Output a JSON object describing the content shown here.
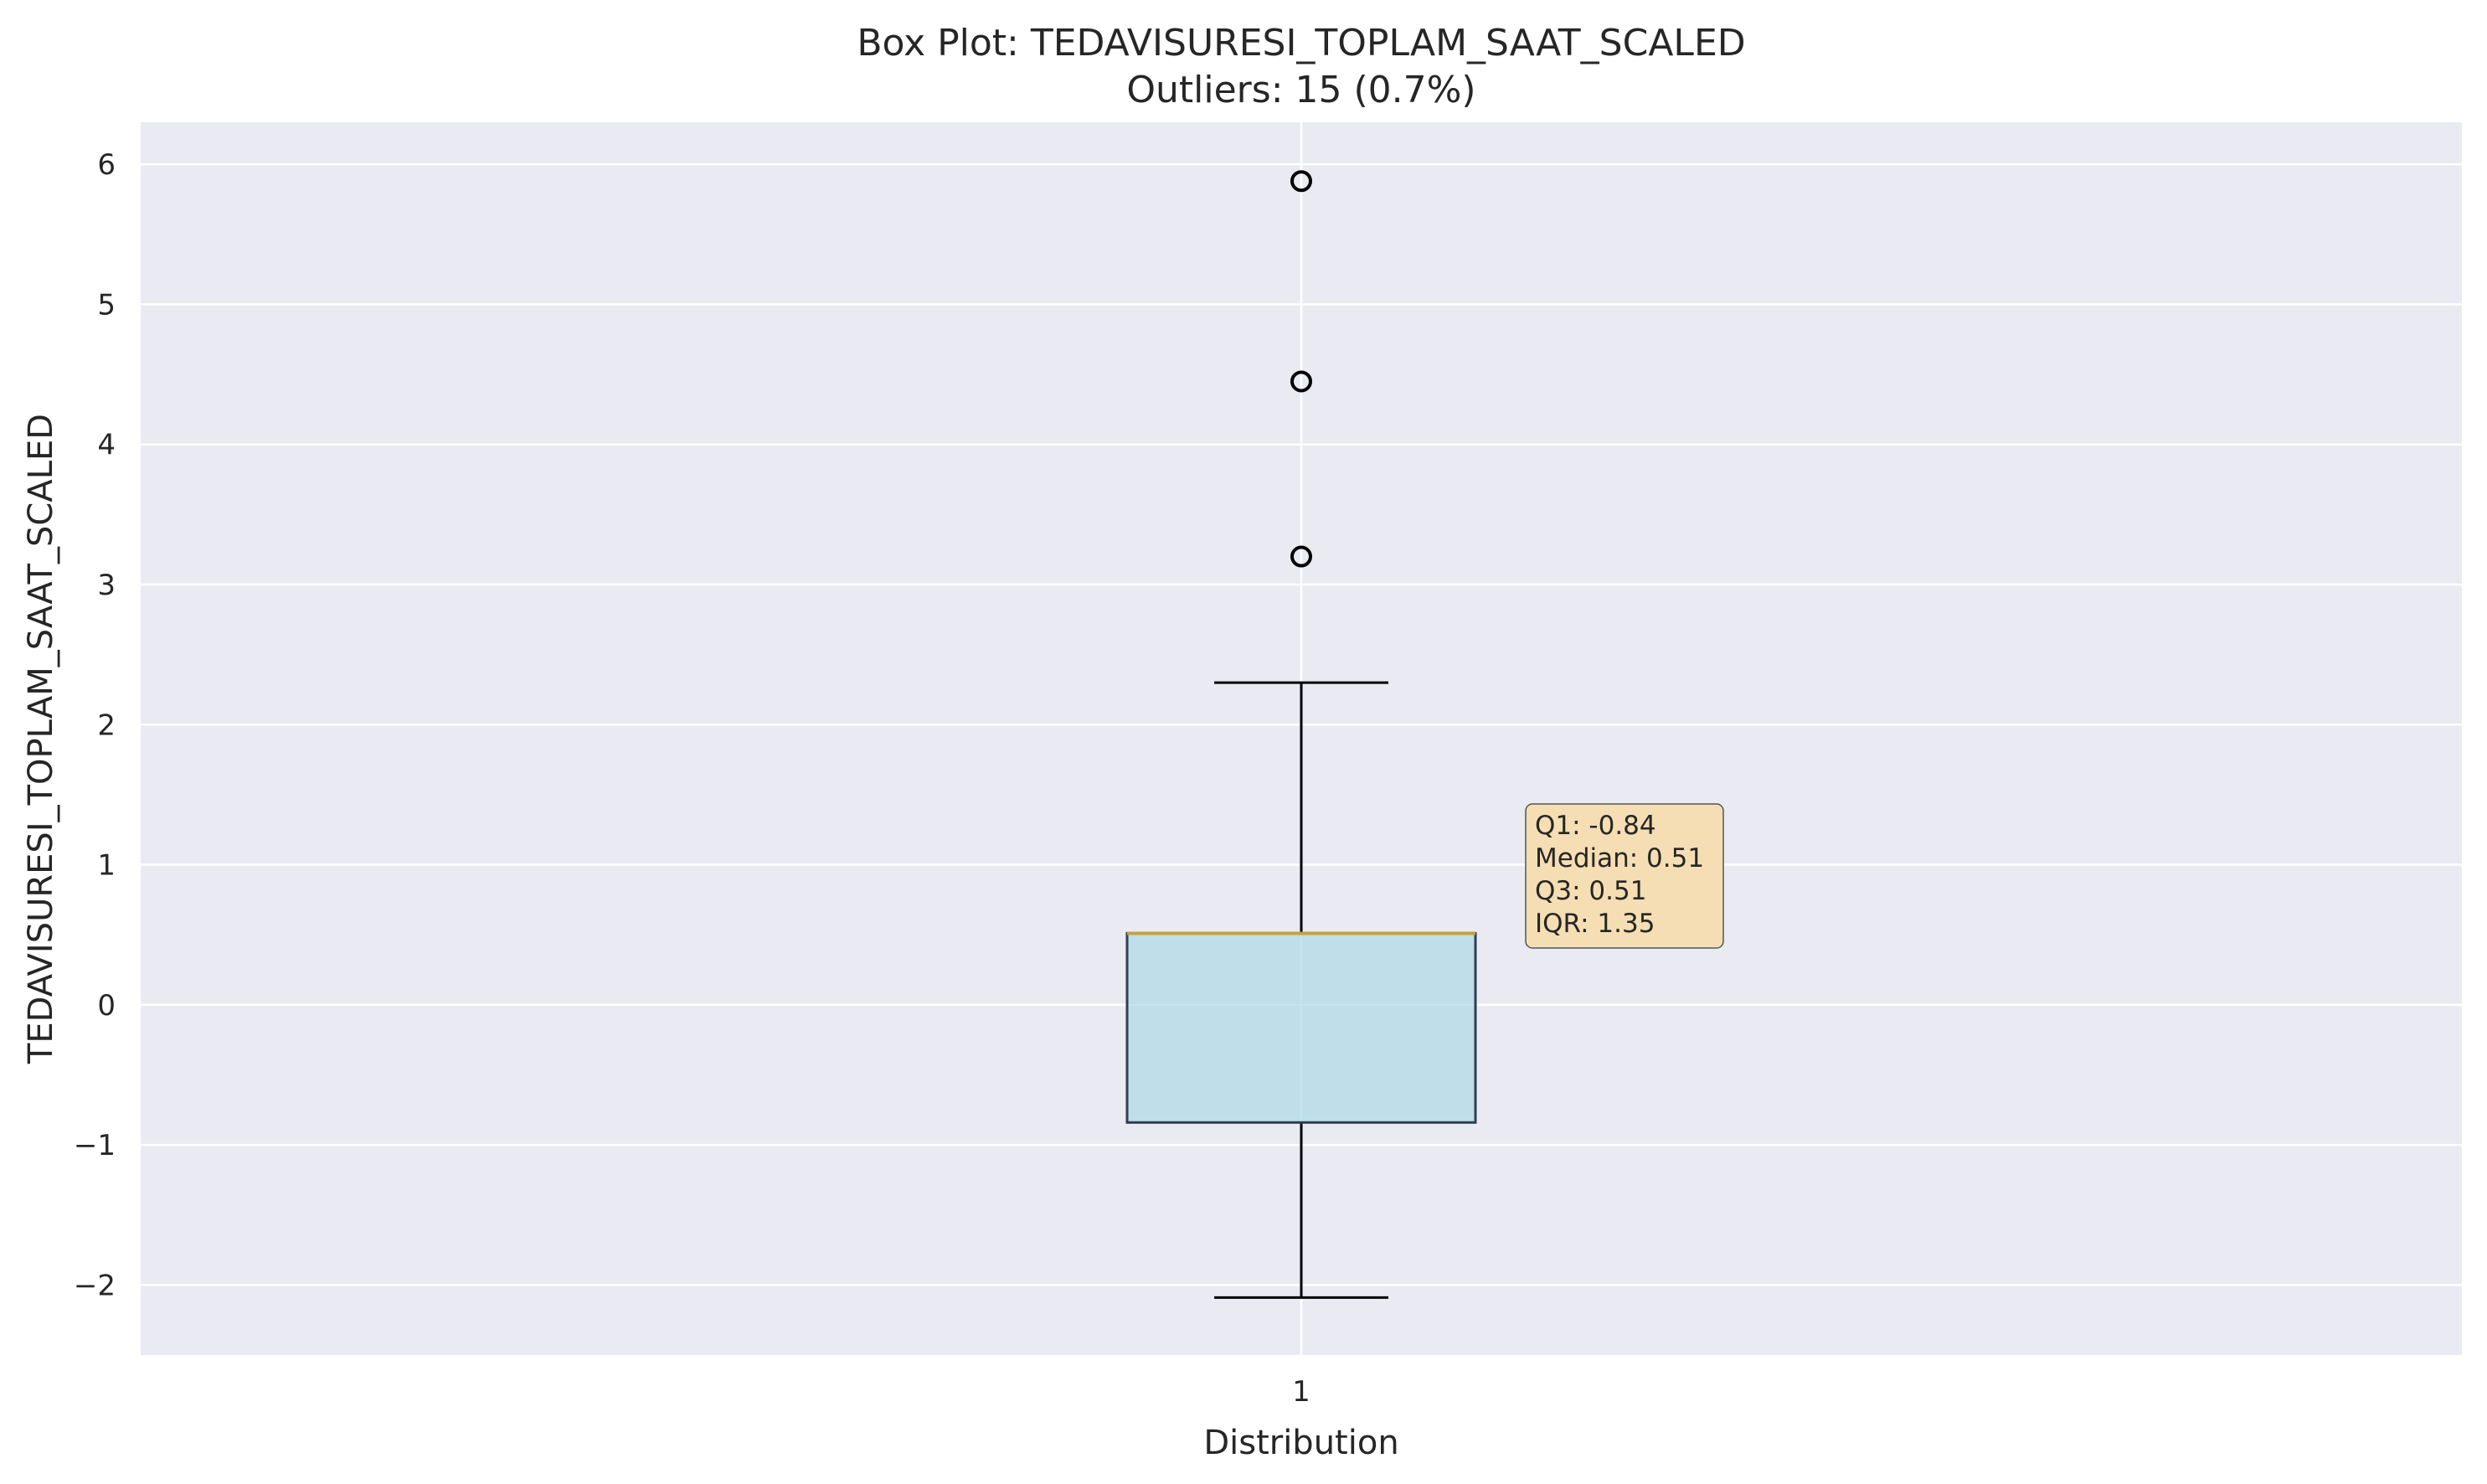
{
  "chart_data": {
    "type": "box",
    "title": "Box Plot: TEDAVISURESI_TOPLAM_SAAT_SCALED",
    "subtitle": "Outliers: 15 (0.7%)",
    "xlabel": "Distribution",
    "ylabel": "TEDAVISURESI_TOPLAM_SAAT_SCALED",
    "categories": [
      "1"
    ],
    "ylim": [
      -2.5,
      6.3
    ],
    "yticks": [
      -2,
      -1,
      0,
      1,
      2,
      3,
      4,
      5,
      6
    ],
    "ytick_labels": [
      "−2",
      "−1",
      "0",
      "1",
      "2",
      "3",
      "4",
      "5",
      "6"
    ],
    "grid": true,
    "box": {
      "whisker_low": -2.09,
      "q1": -0.84,
      "median": 0.51,
      "q3": 0.51,
      "whisker_high": 2.3,
      "outliers": [
        3.2,
        4.45,
        5.88
      ]
    },
    "stats_lines": [
      "Q1: -0.84",
      "Median: 0.51",
      "Q3: 0.51",
      "IQR: 1.35"
    ],
    "colors": {
      "plot_background": "#eaeaf2",
      "grid": "#ffffff",
      "box_fill": "#add8e6",
      "box_edge": "#2f3f4f",
      "median": "#c8a03c",
      "whisker": "#000000",
      "stats_box_fill": "#f5deb3"
    }
  }
}
